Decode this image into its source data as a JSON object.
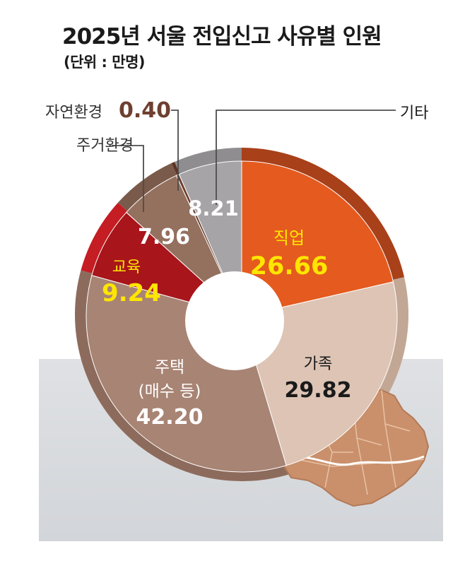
{
  "title": "2025년 서울 전입신고 사유별 인원",
  "unit": "(단위 : 만명)",
  "chart_data": {
    "type": "pie",
    "title": "2025년 서울 전입신고 사유별 인원",
    "unit": "(단위 : 만명)",
    "slices": [
      {
        "label": "직업",
        "value": 26.66,
        "display": "26.66",
        "color": "#e45a1f",
        "depth_color": "#a8401a"
      },
      {
        "label": "가족",
        "value": 29.82,
        "display": "29.82",
        "color": "#ddc4b4",
        "depth_color": "#c2a795"
      },
      {
        "label": "주택",
        "sublabel": "(매수 등)",
        "value": 42.2,
        "display": "42.20",
        "color": "#a88474",
        "depth_color": "#8d6b5c"
      },
      {
        "label": "교육",
        "value": 9.24,
        "display": "9.24",
        "color": "#a8151a",
        "depth_color": "#c41d23"
      },
      {
        "label": "주거환경",
        "value": 7.96,
        "display": "7.96",
        "color": "#94705e",
        "depth_color": "#7a5a4a"
      },
      {
        "label": "자연환경",
        "value": 0.4,
        "display": "0.40",
        "color": "#6f3f2f",
        "depth_color": "#5c3426"
      },
      {
        "label": "기타",
        "value": 8.21,
        "display": "8.21",
        "color": "#a6a4a6",
        "depth_color": "#8f8d8f"
      }
    ]
  }
}
